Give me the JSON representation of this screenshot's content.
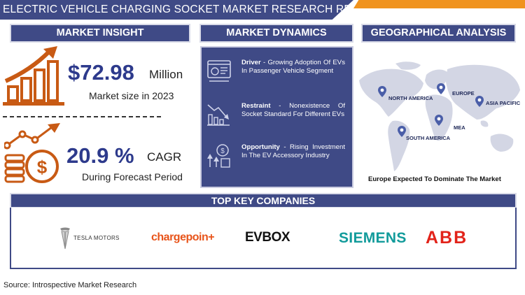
{
  "header": {
    "title": "ELECTRIC VEHICLE CHARGING SOCKET MARKET RESEARCH REPORT"
  },
  "insight": {
    "heading": "MARKET INSIGHT",
    "market_size_value": "$72.98",
    "market_size_unit": "Million",
    "market_size_label": "Market size in 2023",
    "cagr_value": "20.9 %",
    "cagr_unit": "CAGR",
    "cagr_label": "During Forecast Period"
  },
  "dynamics": {
    "heading": "MARKET DYNAMICS",
    "items": [
      {
        "title": "Driver",
        "text": " - Growing Adoption Of EVs In Passenger Vehicle Segment",
        "icon": "dashboard-icon"
      },
      {
        "title": "Restraint",
        "text": " - Nonexistence Of Socket Standard For Different EVs",
        "icon": "declining-chart-icon"
      },
      {
        "title": "Opportunity",
        "text": " - Rising Investment In The EV Accessory Industry",
        "icon": "growth-coin-icon"
      }
    ]
  },
  "geo": {
    "heading": "GEOGRAPHICAL ANALYSIS",
    "regions": [
      "NORTH AMERICA",
      "EUROPE",
      "ASIA PACIFIC",
      "MEA",
      "SOUTH AMERICA"
    ],
    "caption": "Europe Expected To Dominate The Market"
  },
  "companies": {
    "heading": "TOP KEY COMPANIES",
    "list": [
      "TESLA MOTORS",
      "chargepoin+",
      "EVBOX",
      "SIEMENS",
      "ABB"
    ]
  },
  "source": "Source: Introspective Market Research",
  "colors": {
    "navy": "#3f4a86",
    "orange": "#f0931e",
    "accent_blue": "#2d3a8c",
    "icon_orange": "#c85a14"
  }
}
